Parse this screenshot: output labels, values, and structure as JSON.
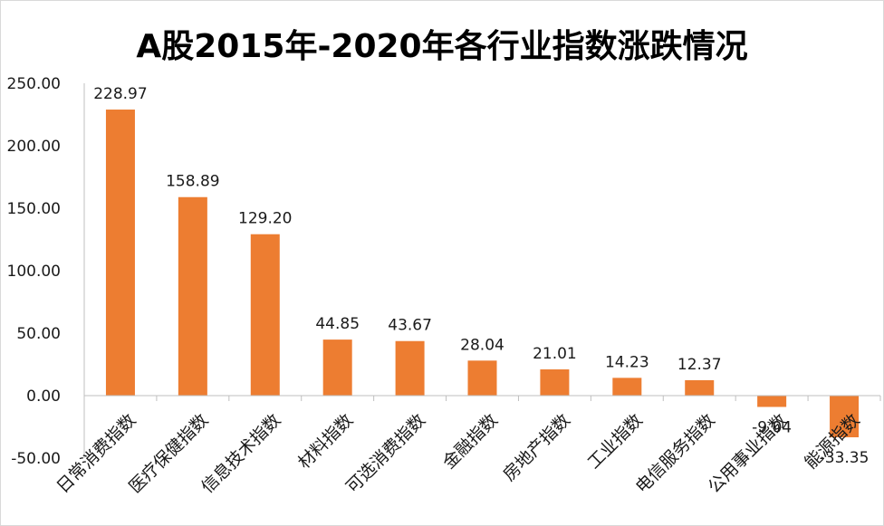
{
  "chart_data": {
    "type": "bar",
    "title": "A股2015年-2020年各行业指数涨跌情况",
    "categories": [
      "日常消费指数",
      "医疗保健指数",
      "信息技术指数",
      "材料指数",
      "可选消费指数",
      "金融指数",
      "房地产指数",
      "工业指数",
      "电信服务指数",
      "公用事业指数",
      "能源指数"
    ],
    "values": [
      228.97,
      158.89,
      129.2,
      44.85,
      43.67,
      28.04,
      21.01,
      14.23,
      12.37,
      -9.04,
      -33.35
    ],
    "value_labels": [
      "228.97",
      "158.89",
      "129.20",
      "44.85",
      "43.67",
      "28.04",
      "21.01",
      "14.23",
      "12.37",
      "-9.04",
      "-33.35"
    ],
    "y_ticks": [
      "250.00",
      "200.00",
      "150.00",
      "100.00",
      "50.00",
      "0.00",
      "-50.00"
    ],
    "ylim": [
      -50,
      250
    ],
    "bar_color": "#ed7d31",
    "grid": false,
    "legend": "none"
  }
}
